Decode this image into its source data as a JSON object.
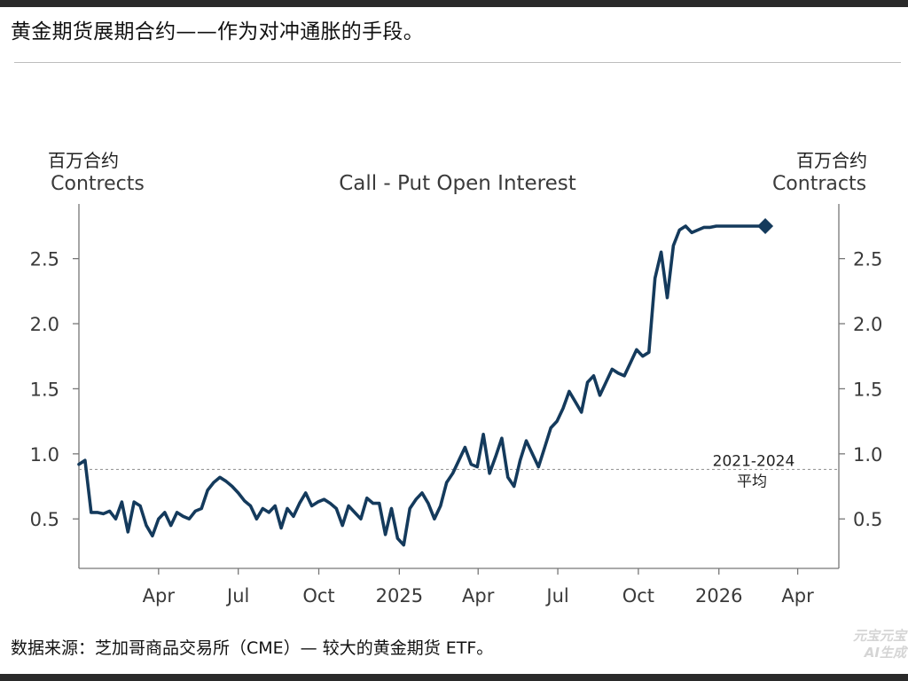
{
  "page": {
    "title": "黄金期货展期合约——作为对冲通胀的手段。",
    "source": "数据来源：芝加哥商品交易所（CME）— 较大的黄金期货 ETF。",
    "watermark_line1": "元宝元宝",
    "watermark_line2": "AI生成"
  },
  "colors": {
    "series": "#143a5c",
    "axis": "#777777",
    "reference_line": "#9a9a9a",
    "text": "#1f1f1f"
  },
  "chart_data": {
    "type": "line",
    "title": "Call - Put Open Interest",
    "ylabel_left": [
      "百万合约",
      "Contrects"
    ],
    "ylabel_right": [
      "百万合约",
      "Contracts"
    ],
    "x_ticks": [
      {
        "label": "Apr",
        "date": "2024-04-01"
      },
      {
        "label": "Jul",
        "date": "2024-07-01"
      },
      {
        "label": "Oct",
        "date": "2024-10-01"
      },
      {
        "label": "2025",
        "date": "2025-01-01"
      },
      {
        "label": "Apr",
        "date": "2025-04-01"
      },
      {
        "label": "Jul",
        "date": "2025-07-01"
      },
      {
        "label": "Oct",
        "date": "2025-10-01"
      },
      {
        "label": "2026",
        "date": "2026-01-01"
      },
      {
        "label": "Apr",
        "date": "2026-04-01"
      }
    ],
    "xlim": [
      "2024-01-01",
      "2026-05-18"
    ],
    "y_ticks": [
      0.5,
      1.0,
      1.5,
      2.0,
      2.5
    ],
    "ylim": [
      0.12,
      2.92
    ],
    "grid": false,
    "reference_line": {
      "value": 0.88,
      "label_line1": "2021-2024",
      "label_line2": "平均"
    },
    "series": [
      {
        "x": [
          "2024-01-01",
          "2024-01-08",
          "2024-01-15",
          "2024-01-22",
          "2024-01-29",
          "2024-02-05",
          "2024-02-12",
          "2024-02-19",
          "2024-02-26",
          "2024-03-04",
          "2024-03-11",
          "2024-03-18",
          "2024-03-25",
          "2024-04-01",
          "2024-04-08",
          "2024-04-15",
          "2024-04-22",
          "2024-04-29",
          "2024-05-06",
          "2024-05-13",
          "2024-05-20",
          "2024-05-27",
          "2024-06-03",
          "2024-06-10",
          "2024-06-17",
          "2024-06-24",
          "2024-07-01",
          "2024-07-08",
          "2024-07-15",
          "2024-07-22",
          "2024-07-29",
          "2024-08-05",
          "2024-08-12",
          "2024-08-19",
          "2024-08-26",
          "2024-09-02",
          "2024-09-09",
          "2024-09-16",
          "2024-09-23",
          "2024-09-30",
          "2024-10-07",
          "2024-10-14",
          "2024-10-21",
          "2024-10-28",
          "2024-11-04",
          "2024-11-11",
          "2024-11-18",
          "2024-11-25",
          "2024-12-02",
          "2024-12-09",
          "2024-12-16",
          "2024-12-23",
          "2024-12-30",
          "2025-01-06",
          "2025-01-13",
          "2025-01-20",
          "2025-01-27",
          "2025-02-03",
          "2025-02-10",
          "2025-02-17",
          "2025-02-24",
          "2025-03-03",
          "2025-03-10",
          "2025-03-17",
          "2025-03-24",
          "2025-03-31",
          "2025-04-07",
          "2025-04-14",
          "2025-04-21",
          "2025-04-28",
          "2025-05-05",
          "2025-05-12",
          "2025-05-19",
          "2025-05-26",
          "2025-06-02",
          "2025-06-09",
          "2025-06-16",
          "2025-06-23",
          "2025-06-30",
          "2025-07-07",
          "2025-07-14",
          "2025-07-21",
          "2025-07-28",
          "2025-08-04",
          "2025-08-11",
          "2025-08-18",
          "2025-08-25",
          "2025-09-01",
          "2025-09-08",
          "2025-09-15",
          "2025-09-22",
          "2025-09-29",
          "2025-10-06",
          "2025-10-13",
          "2025-10-20",
          "2025-10-27",
          "2025-11-03",
          "2025-11-10",
          "2025-11-17",
          "2025-11-24",
          "2025-12-01",
          "2025-12-08",
          "2025-12-15",
          "2025-12-22",
          "2025-12-29",
          "2026-01-05",
          "2026-01-12",
          "2026-01-19",
          "2026-01-26",
          "2026-02-02",
          "2026-02-09",
          "2026-02-16",
          "2026-02-23"
        ],
        "values": [
          0.92,
          0.95,
          0.55,
          0.55,
          0.54,
          0.56,
          0.5,
          0.63,
          0.4,
          0.63,
          0.6,
          0.45,
          0.37,
          0.5,
          0.55,
          0.45,
          0.55,
          0.52,
          0.5,
          0.56,
          0.58,
          0.72,
          0.78,
          0.82,
          0.79,
          0.75,
          0.7,
          0.64,
          0.6,
          0.5,
          0.58,
          0.55,
          0.6,
          0.43,
          0.58,
          0.52,
          0.62,
          0.7,
          0.6,
          0.63,
          0.65,
          0.62,
          0.58,
          0.45,
          0.6,
          0.55,
          0.5,
          0.66,
          0.62,
          0.62,
          0.38,
          0.58,
          0.35,
          0.3,
          0.58,
          0.65,
          0.7,
          0.62,
          0.5,
          0.6,
          0.78,
          0.85,
          0.95,
          1.05,
          0.92,
          0.9,
          1.15,
          0.85,
          0.98,
          1.12,
          0.82,
          0.75,
          0.95,
          1.1,
          1.0,
          0.9,
          1.05,
          1.2,
          1.25,
          1.35,
          1.48,
          1.4,
          1.32,
          1.55,
          1.6,
          1.45,
          1.55,
          1.65,
          1.62,
          1.6,
          1.7,
          1.8,
          1.75,
          1.78,
          2.35,
          2.55,
          2.2,
          2.6,
          2.72,
          2.75,
          2.7,
          2.72,
          2.74,
          2.74,
          2.75,
          2.75,
          2.75,
          2.75,
          2.75,
          2.75,
          2.75,
          2.75,
          2.75
        ]
      }
    ]
  }
}
